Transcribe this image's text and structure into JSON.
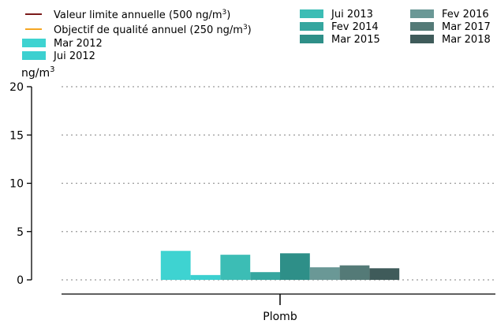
{
  "chart_data": {
    "type": "bar",
    "categories": [
      "Plomb"
    ],
    "ylabel": "ng/m",
    "ylabel_sup": "3",
    "ylim": [
      0,
      20
    ],
    "yticks": [
      0,
      5,
      10,
      15,
      20
    ],
    "grid": "horizontal dotted",
    "legend_placement": "top",
    "reference_lines": [
      {
        "label": "Valeur limite annuelle (500 ng/m",
        "sup": "3",
        "suffix": ")",
        "value": 500,
        "color": "#7b1a1a"
      },
      {
        "label": "Objectif de qualité annuel (250 ng/m",
        "sup": "3",
        "suffix": ")",
        "value": 250,
        "color": "#f5a623"
      }
    ],
    "series": [
      {
        "name": "Mar 2012",
        "values": [
          3.0
        ],
        "color": "#3ed3d1"
      },
      {
        "name": "Jui 2012",
        "values": [
          0.5
        ],
        "color": "#3cd0d0"
      },
      {
        "name": "Jui 2013",
        "values": [
          2.6
        ],
        "color": "#3cbdb5"
      },
      {
        "name": "Fev 2014",
        "values": [
          0.8
        ],
        "color": "#35a69f"
      },
      {
        "name": "Mar 2015",
        "values": [
          2.75
        ],
        "color": "#2e8f88"
      },
      {
        "name": "Fev 2016",
        "values": [
          1.3
        ],
        "color": "#6a9896"
      },
      {
        "name": "Mar 2017",
        "values": [
          1.5
        ],
        "color": "#547a77"
      },
      {
        "name": "Mar 2018",
        "values": [
          1.2
        ],
        "color": "#3f5b5a"
      }
    ]
  }
}
